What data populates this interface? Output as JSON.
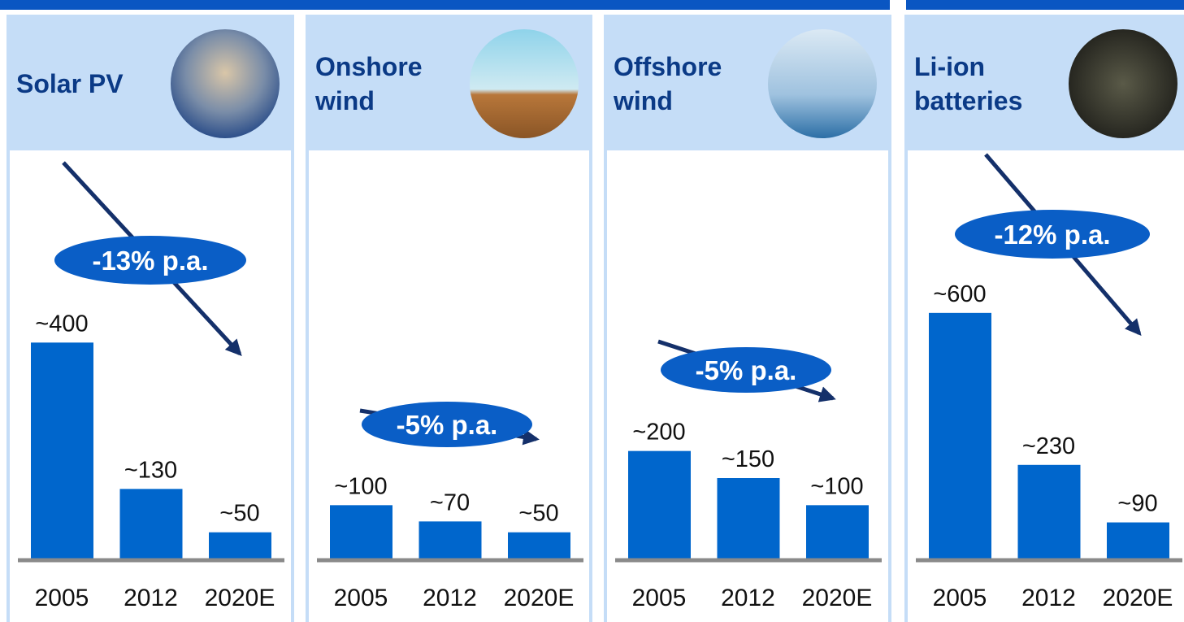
{
  "chart_data": [
    {
      "type": "bar",
      "title": "Solar PV",
      "annotation": "-13% p.a.",
      "categories": [
        "2005",
        "2012",
        "2020E"
      ],
      "values": [
        400,
        130,
        50
      ],
      "value_labels": [
        "~400",
        "~130",
        "~50"
      ],
      "ylim": [
        0,
        720
      ],
      "color": "#0066cc"
    },
    {
      "type": "bar",
      "title": "Onshore wind",
      "annotation": "-5% p.a.",
      "categories": [
        "2005",
        "2012",
        "2020E"
      ],
      "values": [
        100,
        70,
        50
      ],
      "value_labels": [
        "~100",
        "~70",
        "~50"
      ],
      "ylim": [
        0,
        720
      ],
      "color": "#0066cc"
    },
    {
      "type": "bar",
      "title": "Offshore wind",
      "annotation": "-5% p.a.",
      "categories": [
        "2005",
        "2012",
        "2020E"
      ],
      "values": [
        200,
        150,
        100
      ],
      "value_labels": [
        "~200",
        "~150",
        "~100"
      ],
      "ylim": [
        0,
        720
      ],
      "color": "#0066cc"
    },
    {
      "type": "bar",
      "title": "Li-ion batteries",
      "annotation": "-12% p.a.",
      "categories": [
        "2005",
        "2012",
        "2020E"
      ],
      "values": [
        600,
        230,
        90
      ],
      "value_labels": [
        "~600",
        "~230",
        "~90"
      ],
      "ylim": [
        0,
        950
      ],
      "color": "#0066cc"
    }
  ]
}
